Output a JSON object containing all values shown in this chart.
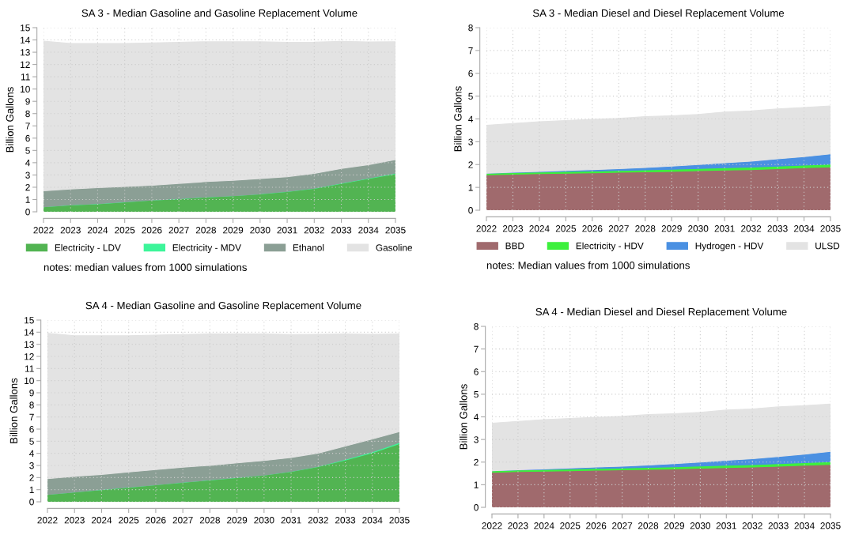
{
  "chart_data": [
    {
      "type": "area",
      "stacked": true,
      "title": "SA 3 - Median Gasoline and Gasoline Replacement Volume",
      "ylabel": "Billion Gallons",
      "x": [
        2022,
        2023,
        2024,
        2025,
        2026,
        2027,
        2028,
        2029,
        2030,
        2031,
        2032,
        2033,
        2034,
        2035
      ],
      "xlim": [
        2022,
        2035
      ],
      "xticks": [
        2022,
        2023,
        2024,
        2025,
        2026,
        2027,
        2028,
        2029,
        2030,
        2031,
        2032,
        2033,
        2034,
        2035
      ],
      "ylim": [
        0,
        15
      ],
      "yticks": [
        0,
        1,
        2,
        3,
        4,
        5,
        6,
        7,
        8,
        9,
        10,
        11,
        12,
        13,
        14,
        15
      ],
      "grid": true,
      "legend": "bottom",
      "series": [
        {
          "name": "Electricity - LDV",
          "color": "#52b452",
          "values": [
            0.4,
            0.55,
            0.65,
            0.8,
            0.95,
            1.05,
            1.2,
            1.3,
            1.45,
            1.65,
            1.9,
            2.3,
            2.7,
            3.1
          ]
        },
        {
          "name": "Electricity - MDV",
          "color": "#3df59a",
          "values": [
            0.01,
            0.01,
            0.01,
            0.01,
            0.01,
            0.01,
            0.01,
            0.01,
            0.01,
            0.01,
            0.02,
            0.03,
            0.04,
            0.05
          ]
        },
        {
          "name": "Ethanol",
          "color": "#8b9f95",
          "values": [
            1.3,
            1.3,
            1.3,
            1.25,
            1.2,
            1.25,
            1.25,
            1.25,
            1.25,
            1.2,
            1.2,
            1.2,
            1.1,
            1.1
          ]
        },
        {
          "name": "Gasoline",
          "color": "#e3e3e3",
          "values": [
            12.2,
            11.85,
            11.75,
            11.65,
            11.6,
            11.5,
            11.4,
            11.3,
            11.15,
            10.95,
            10.7,
            10.35,
            10.0,
            9.6
          ]
        }
      ],
      "annotations": [
        "notes: median values from 1000 simulations"
      ]
    },
    {
      "type": "area",
      "stacked": true,
      "title": "SA 3 - Median Diesel and Diesel Replacement Volume",
      "ylabel": "Billion Gallons",
      "x": [
        2022,
        2023,
        2024,
        2025,
        2026,
        2027,
        2028,
        2029,
        2030,
        2031,
        2032,
        2033,
        2034,
        2035
      ],
      "xlim": [
        2022,
        2035
      ],
      "xticks": [
        2022,
        2023,
        2024,
        2025,
        2026,
        2027,
        2028,
        2029,
        2030,
        2031,
        2032,
        2033,
        2034,
        2035
      ],
      "ylim": [
        0,
        8
      ],
      "yticks": [
        0,
        1,
        2,
        3,
        4,
        5,
        6,
        7,
        8
      ],
      "grid": true,
      "legend": "bottom",
      "series": [
        {
          "name": "BBD",
          "color": "#a06a6d",
          "values": [
            1.55,
            1.58,
            1.6,
            1.62,
            1.64,
            1.66,
            1.68,
            1.7,
            1.73,
            1.76,
            1.78,
            1.82,
            1.86,
            1.9
          ]
        },
        {
          "name": "Electricity - HDV",
          "color": "#3df03d",
          "values": [
            0.07,
            0.07,
            0.07,
            0.08,
            0.08,
            0.08,
            0.09,
            0.09,
            0.1,
            0.1,
            0.11,
            0.11,
            0.12,
            0.12
          ]
        },
        {
          "name": "Hydrogen - HDV",
          "color": "#4a90e2",
          "values": [
            0,
            0.01,
            0.03,
            0.04,
            0.06,
            0.08,
            0.1,
            0.14,
            0.17,
            0.22,
            0.26,
            0.32,
            0.37,
            0.45
          ]
        },
        {
          "name": "ULSD",
          "color": "#e3e3e3",
          "values": [
            2.1,
            2.14,
            2.18,
            2.19,
            2.2,
            2.2,
            2.23,
            2.21,
            2.2,
            2.22,
            2.2,
            2.19,
            2.15,
            2.1
          ]
        }
      ],
      "annotations": [
        "notes: Median values from 1000 simulations"
      ]
    },
    {
      "type": "area",
      "stacked": true,
      "title": "SA 4 - Median Gasoline and Gasoline Replacement Volume",
      "ylabel": "Billion Gallons",
      "x": [
        2022,
        2023,
        2024,
        2025,
        2026,
        2027,
        2028,
        2029,
        2030,
        2031,
        2032,
        2033,
        2034,
        2035
      ],
      "xlim": [
        2022,
        2035
      ],
      "xticks": [
        2022,
        2023,
        2024,
        2025,
        2026,
        2027,
        2028,
        2029,
        2030,
        2031,
        2032,
        2033,
        2034,
        2035
      ],
      "ylim": [
        0,
        15
      ],
      "yticks": [
        0,
        1,
        2,
        3,
        4,
        5,
        6,
        7,
        8,
        9,
        10,
        11,
        12,
        13,
        14,
        15
      ],
      "grid": true,
      "series": [
        {
          "color": "#52b452",
          "values": [
            0.6,
            0.8,
            1.0,
            1.2,
            1.4,
            1.6,
            1.8,
            2.0,
            2.2,
            2.5,
            2.9,
            3.45,
            4.05,
            4.8
          ]
        },
        {
          "color": "#3df59a",
          "values": [
            0.01,
            0.01,
            0.01,
            0.01,
            0.01,
            0.01,
            0.01,
            0.01,
            0.01,
            0.01,
            0.02,
            0.05,
            0.08,
            0.1
          ]
        },
        {
          "color": "#8b9f95",
          "values": [
            1.3,
            1.3,
            1.25,
            1.25,
            1.25,
            1.25,
            1.2,
            1.2,
            1.2,
            1.15,
            1.1,
            1.1,
            1.05,
            0.9
          ]
        },
        {
          "color": "#e3e3e3",
          "values": [
            12.0,
            11.6,
            11.45,
            11.25,
            11.1,
            10.95,
            10.85,
            10.65,
            10.45,
            10.15,
            9.8,
            9.25,
            8.65,
            8.05
          ]
        }
      ]
    },
    {
      "type": "area",
      "stacked": true,
      "title": "SA 4 - Median Diesel and Diesel Replacement Volume",
      "ylabel": "Billion Gallons",
      "x": [
        2022,
        2023,
        2024,
        2025,
        2026,
        2027,
        2028,
        2029,
        2030,
        2031,
        2032,
        2033,
        2034,
        2035
      ],
      "xlim": [
        2022,
        2035
      ],
      "xticks": [
        2022,
        2023,
        2024,
        2025,
        2026,
        2027,
        2028,
        2029,
        2030,
        2031,
        2032,
        2033,
        2034,
        2035
      ],
      "ylim": [
        0,
        8
      ],
      "yticks": [
        0,
        1,
        2,
        3,
        4,
        5,
        6,
        7,
        8
      ],
      "grid": true,
      "series": [
        {
          "color": "#a06a6d",
          "values": [
            1.55,
            1.58,
            1.6,
            1.62,
            1.64,
            1.66,
            1.68,
            1.7,
            1.73,
            1.76,
            1.78,
            1.82,
            1.86,
            1.9
          ]
        },
        {
          "color": "#3df03d",
          "values": [
            0.07,
            0.07,
            0.07,
            0.08,
            0.08,
            0.08,
            0.09,
            0.09,
            0.1,
            0.1,
            0.11,
            0.11,
            0.12,
            0.12
          ]
        },
        {
          "color": "#4a90e2",
          "values": [
            0,
            0.01,
            0.03,
            0.04,
            0.06,
            0.08,
            0.1,
            0.14,
            0.17,
            0.22,
            0.26,
            0.32,
            0.37,
            0.45
          ]
        },
        {
          "color": "#e3e3e3",
          "values": [
            2.1,
            2.14,
            2.18,
            2.19,
            2.2,
            2.2,
            2.23,
            2.21,
            2.2,
            2.22,
            2.2,
            2.19,
            2.15,
            2.1
          ]
        }
      ]
    }
  ]
}
